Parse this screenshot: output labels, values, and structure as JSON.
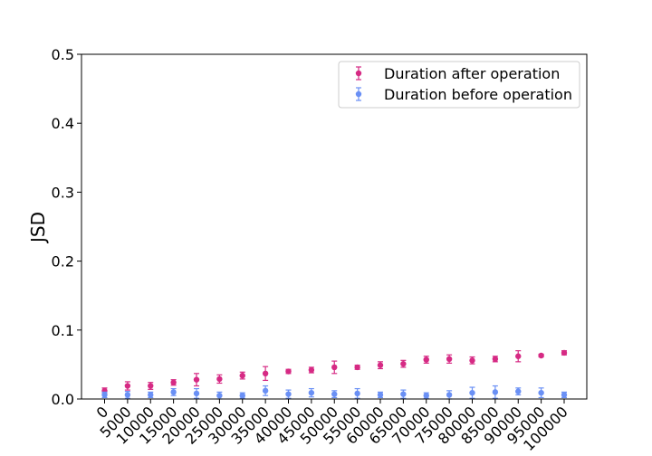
{
  "chart_data": {
    "type": "scatter",
    "ylabel": "JSD",
    "xlabel": "",
    "ylim": [
      0,
      0.5
    ],
    "y_ticks": [
      "0.0",
      "0.1",
      "0.2",
      "0.3",
      "0.4",
      "0.5"
    ],
    "categories": [
      "0",
      "5000",
      "10000",
      "15000",
      "20000",
      "25000",
      "30000",
      "35000",
      "40000",
      "45000",
      "50000",
      "55000",
      "60000",
      "65000",
      "70000",
      "75000",
      "80000",
      "85000",
      "90000",
      "95000",
      "100000"
    ],
    "legend_position": "top-right",
    "series": [
      {
        "name": "Duration after operation",
        "color": "#d62a84",
        "values": [
          0.012,
          0.019,
          0.019,
          0.024,
          0.028,
          0.029,
          0.034,
          0.037,
          0.04,
          0.042,
          0.046,
          0.046,
          0.049,
          0.051,
          0.057,
          0.058,
          0.056,
          0.058,
          0.062,
          0.063,
          0.067
        ],
        "errors": [
          0.004,
          0.006,
          0.005,
          0.004,
          0.009,
          0.006,
          0.005,
          0.01,
          0.003,
          0.004,
          0.009,
          0.003,
          0.005,
          0.005,
          0.005,
          0.006,
          0.005,
          0.004,
          0.008,
          0.002,
          0.003
        ]
      },
      {
        "name": "Duration before operation",
        "color": "#6a90f5",
        "values": [
          0.006,
          0.006,
          0.006,
          0.01,
          0.008,
          0.005,
          0.005,
          0.012,
          0.007,
          0.009,
          0.007,
          0.008,
          0.006,
          0.007,
          0.005,
          0.006,
          0.009,
          0.01,
          0.011,
          0.009,
          0.006
        ],
        "errors": [
          0.004,
          0.005,
          0.004,
          0.005,
          0.007,
          0.005,
          0.004,
          0.007,
          0.006,
          0.006,
          0.005,
          0.007,
          0.004,
          0.006,
          0.004,
          0.006,
          0.008,
          0.009,
          0.005,
          0.007,
          0.004
        ]
      }
    ]
  }
}
